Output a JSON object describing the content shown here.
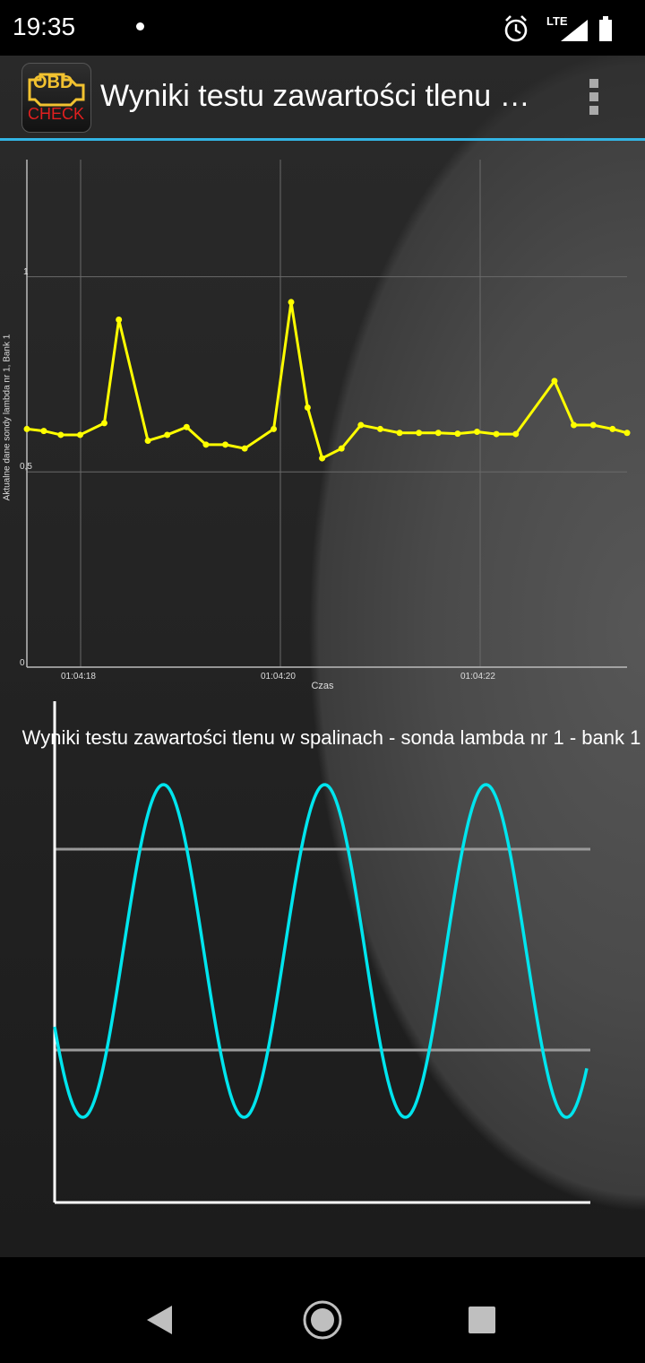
{
  "status_bar": {
    "time": "19:35",
    "network": "LTE",
    "icons": [
      "alarm-icon",
      "signal-icon",
      "battery-icon"
    ]
  },
  "app_bar": {
    "logo_obd": "OBD",
    "logo_check": "CHECK",
    "title": "Wyniki testu zawartości tlenu w spalinach - sonda lambda nr 1 - bank 1"
  },
  "colors": {
    "accent": "#33b5e5",
    "top_series": "#ffff00",
    "bottom_series": "#00e5ee",
    "reference_lines": "#9a9a9a"
  },
  "chart_data": [
    {
      "type": "line",
      "xlabel": "Czas",
      "ylabel": "Aktualne dane sondy lambda nr 1, Bank 1",
      "x_ticks": [
        "01:04:18",
        "01:04:20",
        "01:04:22"
      ],
      "y_ticks": [
        "0",
        "0,5",
        "1"
      ],
      "ylim": [
        0,
        1.3
      ],
      "grid": true,
      "series": [
        {
          "values": [
            0.61,
            0.605,
            0.595,
            0.595,
            0.625,
            0.89,
            0.58,
            0.595,
            0.615,
            0.57,
            0.57,
            0.56,
            0.61,
            0.935,
            0.665,
            0.535,
            0.56,
            0.62,
            0.61,
            0.6,
            0.6,
            0.6,
            0.598,
            0.603,
            0.597,
            0.597,
            0.733,
            0.62,
            0.62,
            0.61,
            0.6
          ],
          "x": [
            0,
            0.175,
            0.35,
            0.55,
            0.8,
            0.95,
            1.25,
            1.45,
            1.65,
            1.85,
            2.05,
            2.25,
            2.55,
            2.73,
            2.9,
            3.05,
            3.25,
            3.45,
            3.65,
            3.85,
            4.05,
            4.25,
            4.45,
            4.65,
            4.85,
            5.05,
            5.45,
            5.65,
            5.85,
            6.05,
            6.2
          ]
        }
      ]
    },
    {
      "type": "line",
      "title": "Wyniki testu zawartości tlenu w spalinach - sonda lambda nr 1 - bank 1",
      "series": [
        {
          "shape": "sine",
          "cycles": 3.3
        }
      ],
      "reference_lines": 2
    }
  ],
  "nav_bar": {
    "buttons": [
      "back-icon",
      "home-icon",
      "recents-icon"
    ]
  }
}
